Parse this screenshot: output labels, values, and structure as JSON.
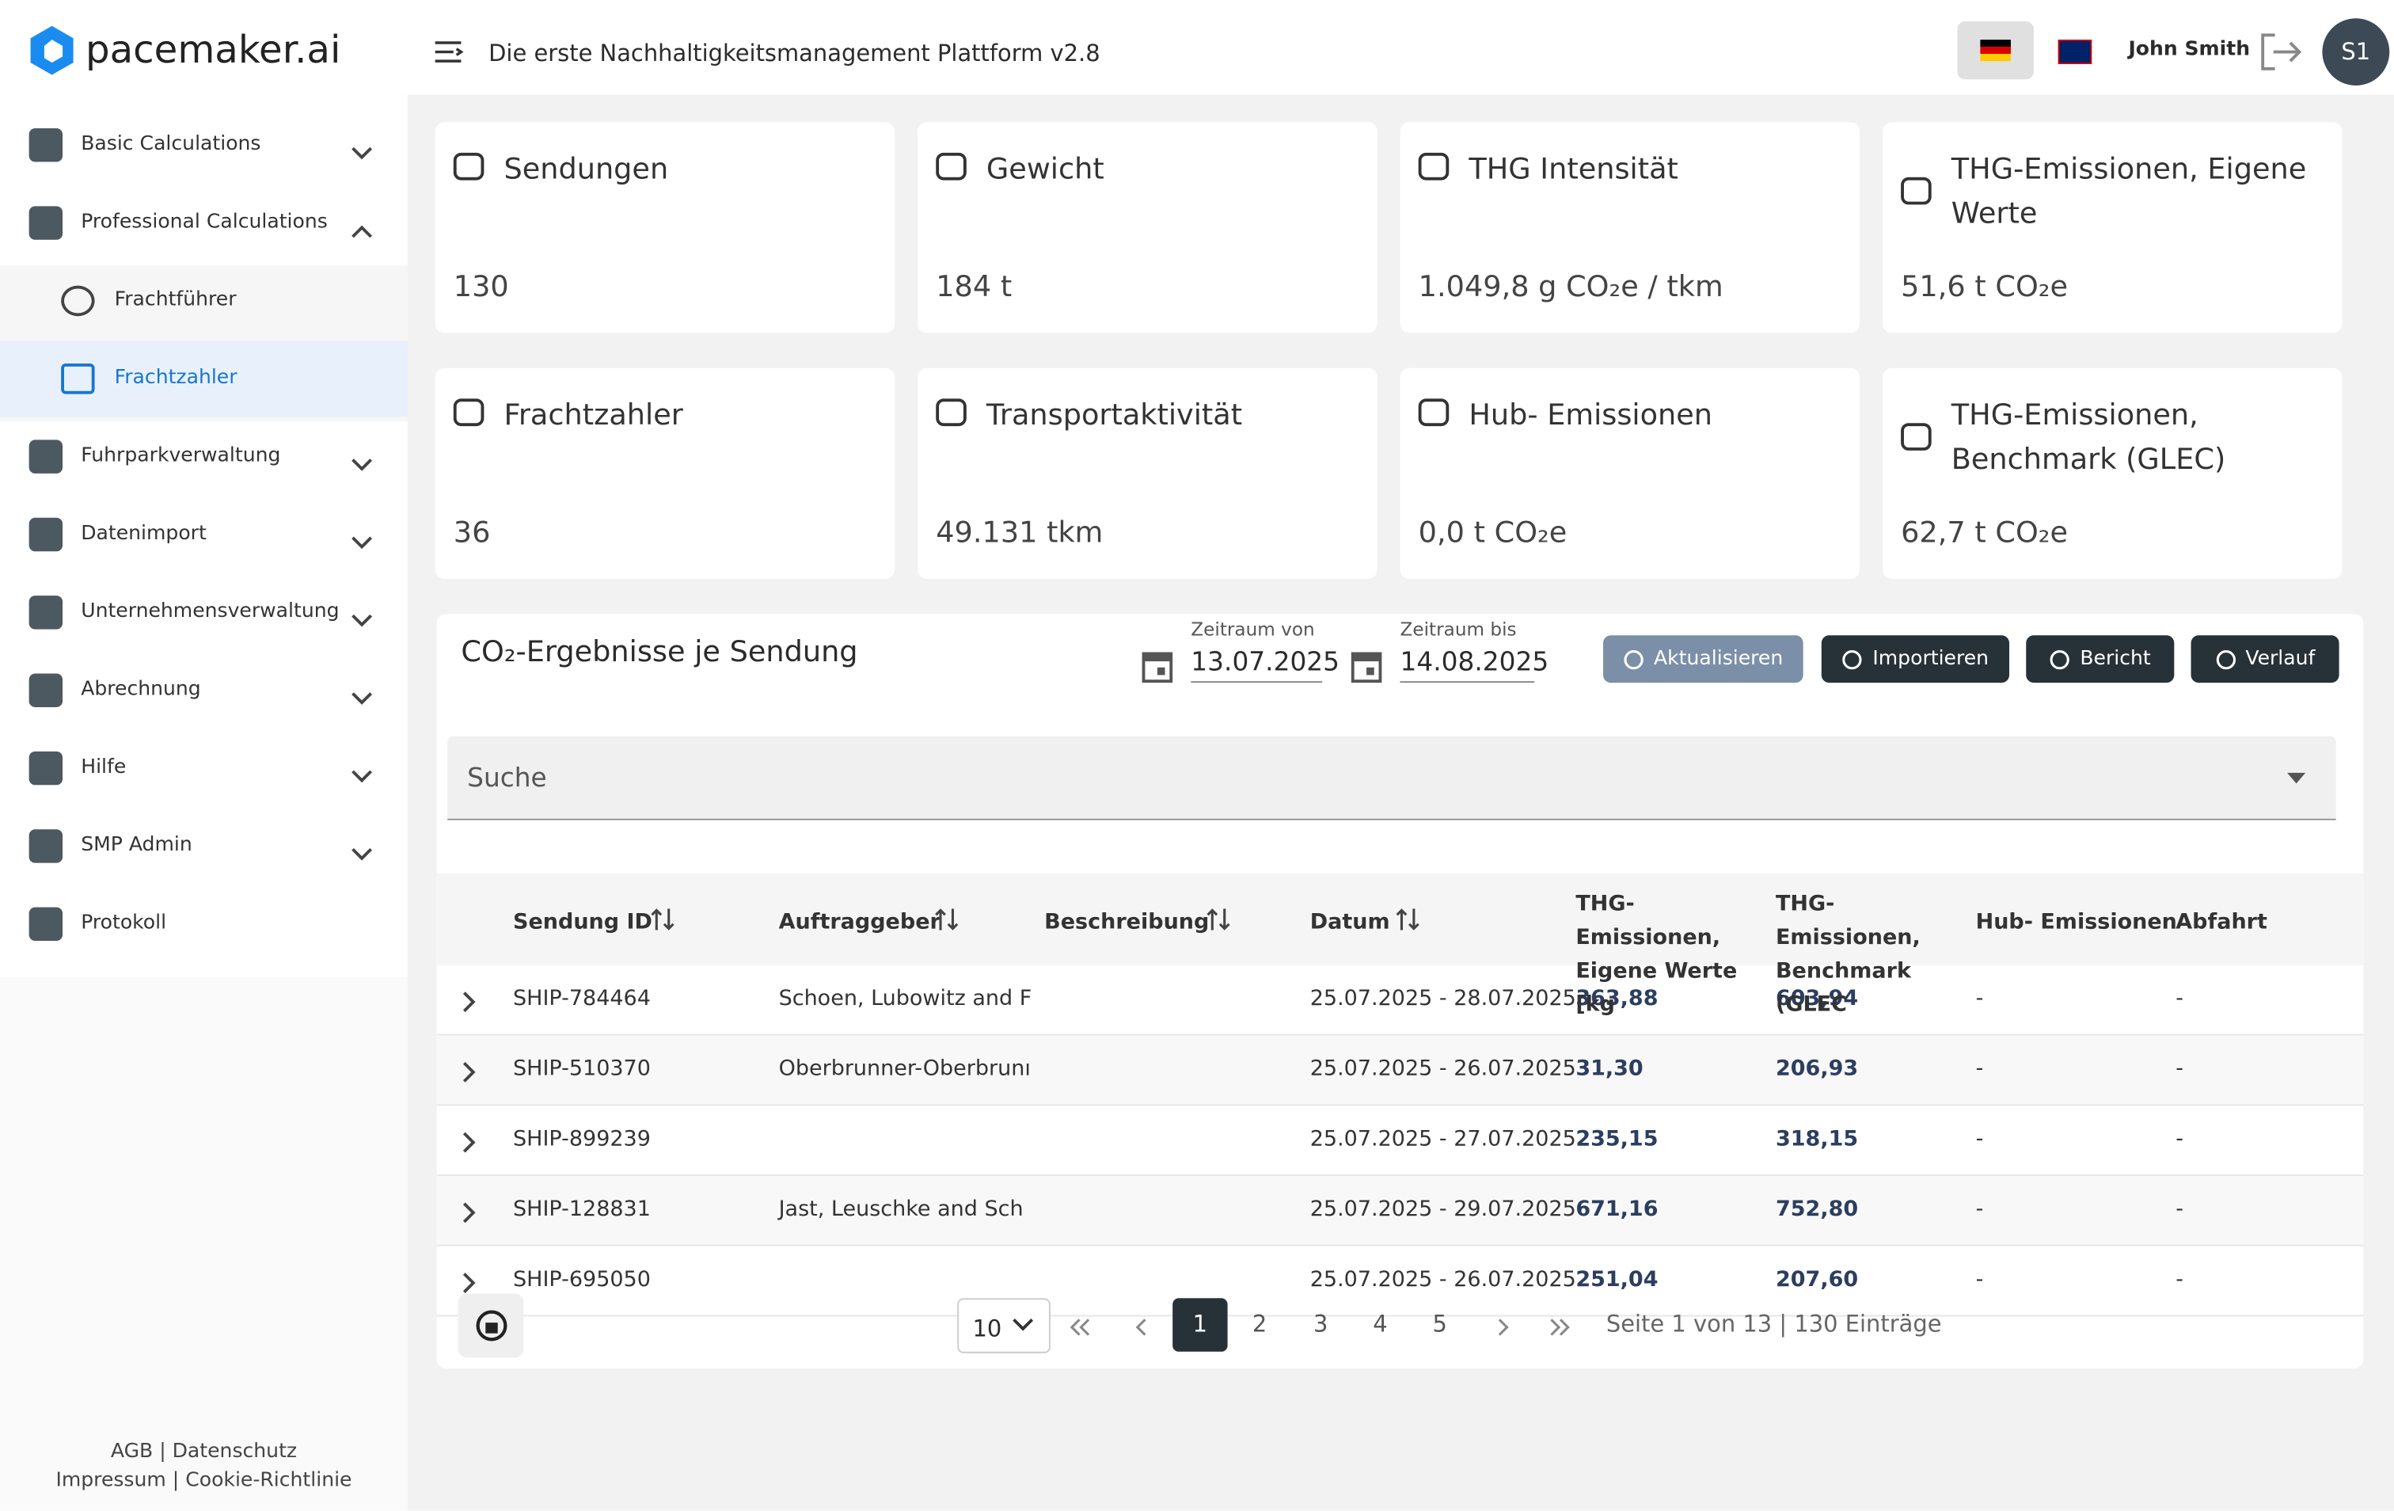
{
  "header": {
    "logo": "pacemaker.ai",
    "title": "Die erste Nachhaltigkeitsmanagement Plattform v2.8",
    "user": "John Smith",
    "avatar": "S1"
  },
  "sidebar": {
    "items": [
      {
        "label": "Basic Calculations"
      },
      {
        "label": "Professional Calculations",
        "children": [
          {
            "label": "Frachtführer"
          },
          {
            "label": "Frachtzahler"
          }
        ]
      },
      {
        "label": "Fuhrparkverwaltung"
      },
      {
        "label": "Datenimport"
      },
      {
        "label": "Unternehmensverwaltung"
      },
      {
        "label": "Abrechnung"
      },
      {
        "label": "Hilfe"
      },
      {
        "label": "SMP Admin"
      },
      {
        "label": "Protokoll"
      }
    ],
    "footer": [
      "AGB",
      "Datenschutz",
      "Impressum",
      "Cookie-Richtlinie"
    ]
  },
  "kpis": [
    {
      "title": "Sendungen",
      "value": "130"
    },
    {
      "title": "Gewicht",
      "value": "184 t"
    },
    {
      "title": "THG Intensität",
      "value": "1.049,8 g CO₂e / tkm"
    },
    {
      "title": "THG-Emissionen, Eigene Werte",
      "value": "51,6 t CO₂e"
    },
    {
      "title": "Frachtzahler",
      "value": "36"
    },
    {
      "title": "Transportaktivität",
      "value": "49.131 tkm"
    },
    {
      "title": "Hub- Emissionen",
      "value": "0,0 t CO₂e"
    },
    {
      "title": "THG-Emissionen, Benchmark (GLEC)",
      "value": "62,7 t CO₂e"
    }
  ],
  "results": {
    "title": "CO₂-Ergebnisse je Sendung",
    "date_from_label": "Zeitraum von",
    "date_from": "13.07.2025",
    "date_to_label": "Zeitraum bis",
    "date_to": "14.08.2025",
    "buttons": [
      "Aktualisieren",
      "Importieren",
      "Bericht",
      "Verlauf"
    ],
    "search": "Suche",
    "columns": [
      "Sendung ID",
      "Auftraggeber",
      "Beschreibung",
      "Datum",
      "THG-Emissionen, Eigene Werte [kg",
      "THG-Emissionen, Benchmark (GLEC",
      "Hub- Emissionen",
      "Abfahrt"
    ],
    "rows": [
      [
        "SHIP-784464",
        "Schoen, Lubowitz and F",
        "",
        "25.07.2025 - 28.07.2025",
        "363,88",
        "603,94",
        "-",
        "-"
      ],
      [
        "SHIP-510370",
        "Oberbrunner-Oberbrunı",
        "",
        "25.07.2025 - 26.07.2025",
        "31,30",
        "206,93",
        "-",
        "-"
      ],
      [
        "SHIP-899239",
        "",
        "",
        "25.07.2025 - 27.07.2025",
        "235,15",
        "318,15",
        "-",
        "-"
      ],
      [
        "SHIP-128831",
        "Jast, Leuschke and Sch",
        "",
        "25.07.2025 - 29.07.2025",
        "671,16",
        "752,80",
        "-",
        "-"
      ],
      [
        "SHIP-695050",
        "",
        "",
        "25.07.2025 - 26.07.2025",
        "251,04",
        "207,60",
        "-",
        "-"
      ]
    ],
    "pagination": {
      "page_size": "10",
      "pages": [
        "1",
        "2",
        "3",
        "4",
        "5"
      ],
      "status": "Seite 1 von 13 | 130 Einträge"
    }
  }
}
